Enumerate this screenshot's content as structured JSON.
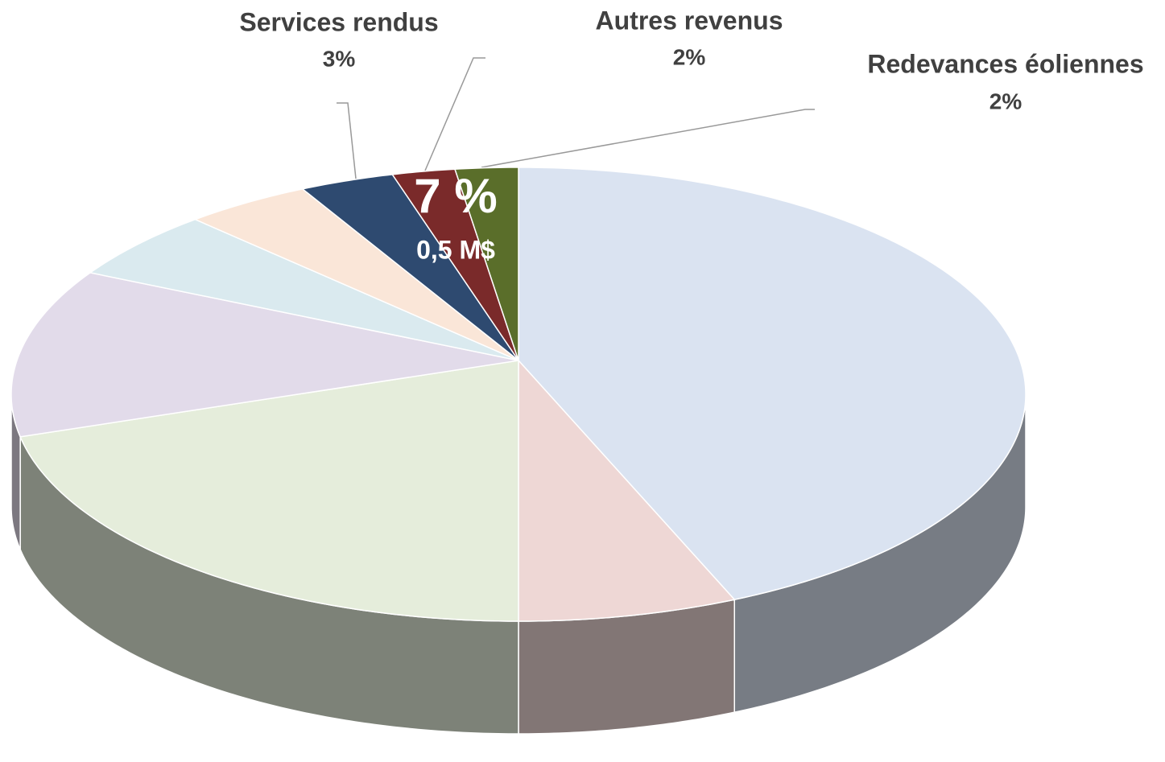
{
  "chart_data": {
    "type": "pie3d",
    "categories": [
      null,
      null,
      null,
      null,
      null,
      null,
      "Services rendus",
      "Autres revenus",
      "Redevances éoliennes"
    ],
    "values": [
      43,
      7,
      22,
      12,
      5,
      4,
      3,
      2,
      2
    ],
    "value_labels": [
      null,
      null,
      null,
      null,
      null,
      null,
      "3%",
      "2%",
      "2%"
    ],
    "colors": [
      "#dae3f1",
      "#eed7d5",
      "#e5eddb",
      "#e2dbea",
      "#daeaef",
      "#fae6d8",
      "#2e4a70",
      "#7a2a2a",
      "#5a6e2a"
    ],
    "annotations": [
      "7 %",
      "0,5 M$"
    ]
  }
}
